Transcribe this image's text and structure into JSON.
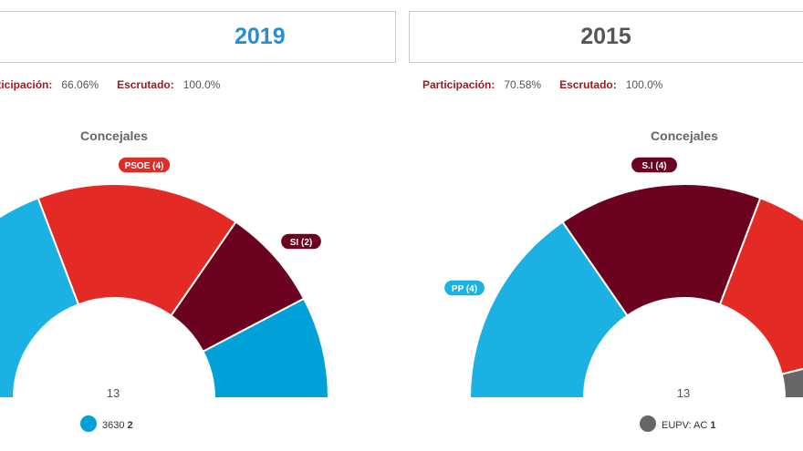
{
  "chart_data": [
    {
      "type": "pie",
      "subtype": "semicircle-donut",
      "header": "2019",
      "participation_label": "Participación:",
      "participation": "66.06%",
      "scrutinized_label": "Escrutado:",
      "scrutinized": "100.0%",
      "title": "Concejales",
      "total": "13",
      "series": [
        {
          "name": "",
          "seats": 5,
          "color": "#1bb1e3"
        },
        {
          "name": "PSOE",
          "seats": 4,
          "color": "#e32a25",
          "label": "PSOE (4)"
        },
        {
          "name": "SI",
          "seats": 2,
          "color": "#6b0320",
          "label": "SI (2)"
        },
        {
          "name": "3630",
          "seats": 2,
          "color": "#00a0d8"
        }
      ],
      "legend": [
        {
          "name": "3630",
          "value": "2",
          "color": "#00a0d8"
        }
      ]
    },
    {
      "type": "pie",
      "subtype": "semicircle-donut",
      "header": "2015",
      "participation_label": "Participación:",
      "participation": "70.58%",
      "scrutinized_label": "Escrutado:",
      "scrutinized": "100.0%",
      "title": "Concejales",
      "total": "13",
      "series": [
        {
          "name": "PP",
          "seats": 4,
          "color": "#1bb1e3",
          "label": "PP (4)"
        },
        {
          "name": "S.I",
          "seats": 4,
          "color": "#6b0320",
          "label": "S.I (4)"
        },
        {
          "name": "",
          "seats": 4,
          "color": "#e32a25"
        },
        {
          "name": "EUPV: AC",
          "seats": 1,
          "color": "#666666"
        }
      ],
      "legend": [
        {
          "name": "EUPV: AC",
          "value": "1",
          "color": "#666666"
        }
      ]
    }
  ]
}
